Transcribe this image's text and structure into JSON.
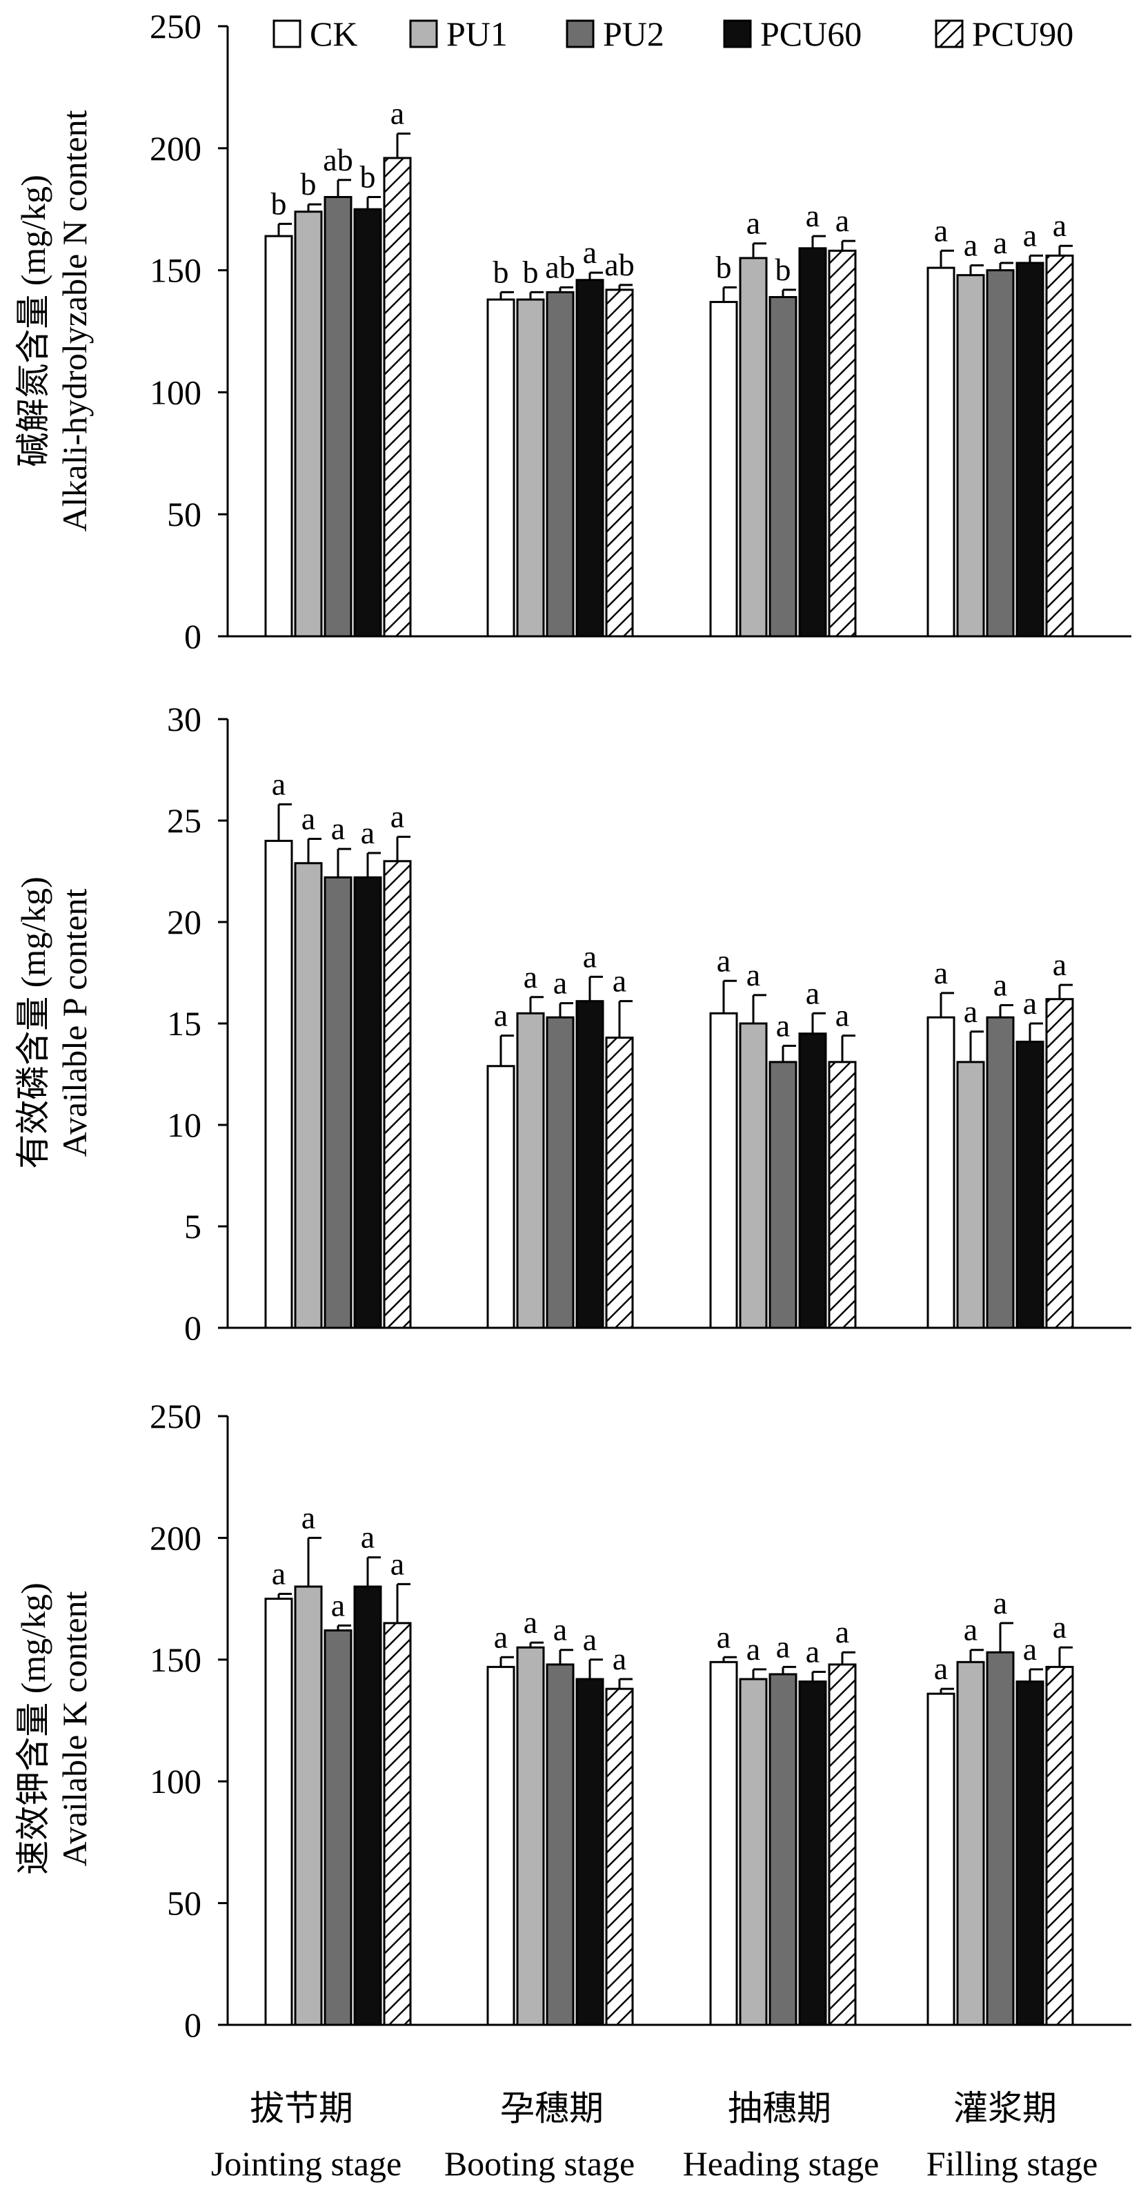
{
  "legend": [
    "CK",
    "PU1",
    "PU2",
    "PCU60",
    "PCU90"
  ],
  "series_styles": {
    "CK": {
      "fill": "#ffffff",
      "hatch": false
    },
    "PU1": {
      "fill": "#b3b3b3",
      "hatch": false
    },
    "PU2": {
      "fill": "#6e6e6e",
      "hatch": false
    },
    "PCU60": {
      "fill": "#0d0d0d",
      "hatch": false
    },
    "PCU90": {
      "fill": "#ffffff",
      "hatch": true
    }
  },
  "categories_cn": [
    "拔节期",
    "孕穗期",
    "抽穗期",
    "灌浆期"
  ],
  "categories_en": [
    "Jointing stage",
    "Booting stage",
    "Heading stage",
    "Filling stage"
  ],
  "chart_data": [
    {
      "type": "bar",
      "ylabel_cn": "碱解氮含量 (mg/kg)",
      "ylabel_en": "Alkali-hydrolyzable N content",
      "ylim": [
        0,
        250
      ],
      "yticks": [
        0,
        50,
        100,
        150,
        200,
        250
      ],
      "series": [
        {
          "name": "CK",
          "values": [
            164,
            138,
            137,
            151
          ],
          "errors": [
            5,
            3,
            6,
            7
          ],
          "sig": [
            "b",
            "b",
            "b",
            "a"
          ]
        },
        {
          "name": "PU1",
          "values": [
            174,
            138,
            155,
            148
          ],
          "errors": [
            3,
            3,
            6,
            4
          ],
          "sig": [
            "b",
            "b",
            "a",
            "a"
          ]
        },
        {
          "name": "PU2",
          "values": [
            180,
            141,
            139,
            150
          ],
          "errors": [
            7,
            2,
            3,
            3
          ],
          "sig": [
            "ab",
            "ab",
            "b",
            "a"
          ]
        },
        {
          "name": "PCU60",
          "values": [
            175,
            146,
            159,
            153
          ],
          "errors": [
            5,
            3,
            5,
            3
          ],
          "sig": [
            "b",
            "a",
            "a",
            "a"
          ]
        },
        {
          "name": "PCU90",
          "values": [
            196,
            142,
            158,
            156
          ],
          "errors": [
            10,
            2,
            4,
            4
          ],
          "sig": [
            "a",
            "ab",
            "a",
            "a"
          ]
        }
      ]
    },
    {
      "type": "bar",
      "ylabel_cn": "有效磷含量 (mg/kg)",
      "ylabel_en": "Available P content",
      "ylim": [
        0,
        30
      ],
      "yticks": [
        0,
        5,
        10,
        15,
        20,
        25,
        30
      ],
      "series": [
        {
          "name": "CK",
          "values": [
            24.0,
            12.9,
            15.5,
            15.3
          ],
          "errors": [
            1.8,
            1.5,
            1.6,
            1.2
          ],
          "sig": [
            "a",
            "a",
            "a",
            "a"
          ]
        },
        {
          "name": "PU1",
          "values": [
            22.9,
            15.5,
            15.0,
            13.1
          ],
          "errors": [
            1.2,
            0.8,
            1.4,
            1.5
          ],
          "sig": [
            "a",
            "a",
            "a",
            "a"
          ]
        },
        {
          "name": "PU2",
          "values": [
            22.2,
            15.3,
            13.1,
            15.3
          ],
          "errors": [
            1.4,
            0.7,
            0.8,
            0.6
          ],
          "sig": [
            "a",
            "a",
            "a",
            "a"
          ]
        },
        {
          "name": "PCU60",
          "values": [
            22.2,
            16.1,
            14.5,
            14.1
          ],
          "errors": [
            1.2,
            1.2,
            1.0,
            0.9
          ],
          "sig": [
            "a",
            "a",
            "a",
            "a"
          ]
        },
        {
          "name": "PCU90",
          "values": [
            23.0,
            14.3,
            13.1,
            16.2
          ],
          "errors": [
            1.2,
            1.8,
            1.3,
            0.7
          ],
          "sig": [
            "a",
            "a",
            "a",
            "a"
          ]
        }
      ]
    },
    {
      "type": "bar",
      "ylabel_cn": "速效钾含量 (mg/kg)",
      "ylabel_en": "Available K content",
      "ylim": [
        0,
        250
      ],
      "yticks": [
        0,
        50,
        100,
        150,
        200,
        250
      ],
      "series": [
        {
          "name": "CK",
          "values": [
            175,
            147,
            149,
            136
          ],
          "errors": [
            2,
            4,
            2,
            2
          ],
          "sig": [
            "a",
            "a",
            "a",
            "a"
          ]
        },
        {
          "name": "PU1",
          "values": [
            180,
            155,
            142,
            149
          ],
          "errors": [
            20,
            2,
            4,
            5
          ],
          "sig": [
            "a",
            "a",
            "a",
            "a"
          ]
        },
        {
          "name": "PU2",
          "values": [
            162,
            148,
            144,
            153
          ],
          "errors": [
            2,
            6,
            3,
            12
          ],
          "sig": [
            "a",
            "a",
            "a",
            "a"
          ]
        },
        {
          "name": "PCU60",
          "values": [
            180,
            142,
            141,
            141
          ],
          "errors": [
            12,
            8,
            4,
            5
          ],
          "sig": [
            "a",
            "a",
            "a",
            "a"
          ]
        },
        {
          "name": "PCU90",
          "values": [
            165,
            138,
            148,
            147
          ],
          "errors": [
            16,
            4,
            5,
            8
          ],
          "sig": [
            "a",
            "a",
            "a",
            "a"
          ]
        }
      ]
    }
  ]
}
